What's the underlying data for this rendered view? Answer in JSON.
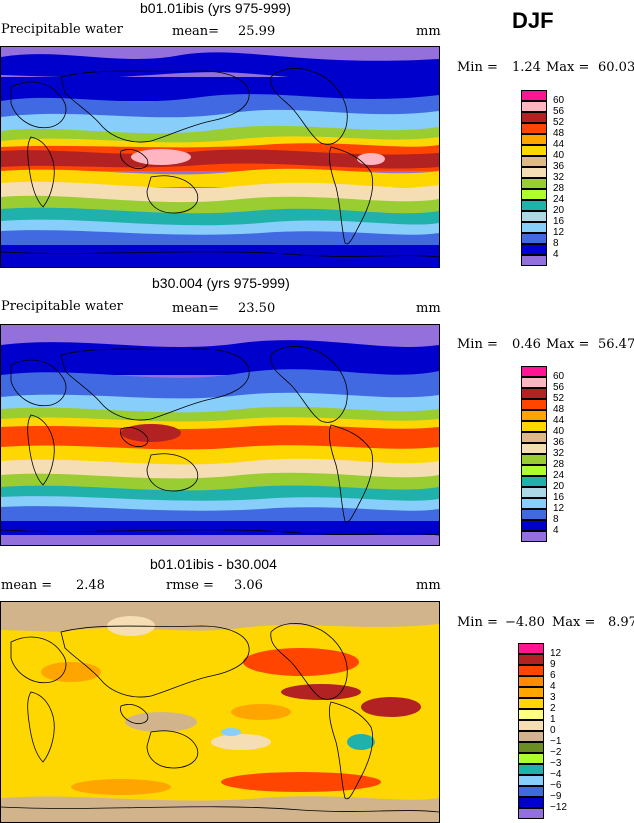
{
  "season": "DJF",
  "panels": [
    {
      "title": "b01.01ibis (yrs 975-999)",
      "left_label": "Precipitable water",
      "stat_label": "mean=",
      "stat_value": "25.99",
      "units": "mm",
      "min_label": "Min =",
      "min_value": "1.24",
      "max_label": "Max =",
      "max_value": "60.03",
      "levels": [
        "60",
        "56",
        "52",
        "48",
        "44",
        "40",
        "36",
        "32",
        "28",
        "24",
        "20",
        "16",
        "12",
        "8",
        "4"
      ]
    },
    {
      "title": "b30.004 (yrs 975-999)",
      "left_label": "Precipitable water",
      "stat_label": "mean=",
      "stat_value": "23.50",
      "units": "mm",
      "min_label": "Min =",
      "min_value": "0.46",
      "max_label": "Max =",
      "max_value": "56.47",
      "levels": [
        "60",
        "56",
        "52",
        "48",
        "44",
        "40",
        "36",
        "32",
        "28",
        "24",
        "20",
        "16",
        "12",
        "8",
        "4"
      ]
    },
    {
      "title": "b01.01ibis - b30.004",
      "mean_label": "mean =",
      "mean_value": "2.48",
      "rmse_label": "rmse =",
      "rmse_value": "3.06",
      "units": "mm",
      "min_label": "Min =",
      "min_value": "−4.80",
      "max_label": "Max =",
      "max_value": "8.97",
      "levels": [
        "12",
        "9",
        "6",
        "4",
        "3",
        "2",
        "1",
        "0",
        "−1",
        "−2",
        "−3",
        "−4",
        "−6",
        "−9",
        "−12"
      ]
    }
  ],
  "colors": {
    "absolute": [
      "#ff1493",
      "#ffb6c1",
      "#b22222",
      "#ff4500",
      "#ffa500",
      "#ffd700",
      "#deb887",
      "#f5deb3",
      "#9acd32",
      "#adff2f",
      "#20b2aa",
      "#add8e6",
      "#87cefa",
      "#4169e1",
      "#0000cd",
      "#9370db"
    ],
    "difference": [
      "#ff1493",
      "#b22222",
      "#ff4500",
      "#ff8c00",
      "#ffa500",
      "#ffd700",
      "#ffff80",
      "#f5deb3",
      "#d2b48c",
      "#6b8e23",
      "#adff2f",
      "#20b2aa",
      "#87cefa",
      "#4169e1",
      "#0000cd",
      "#9370db"
    ]
  }
}
